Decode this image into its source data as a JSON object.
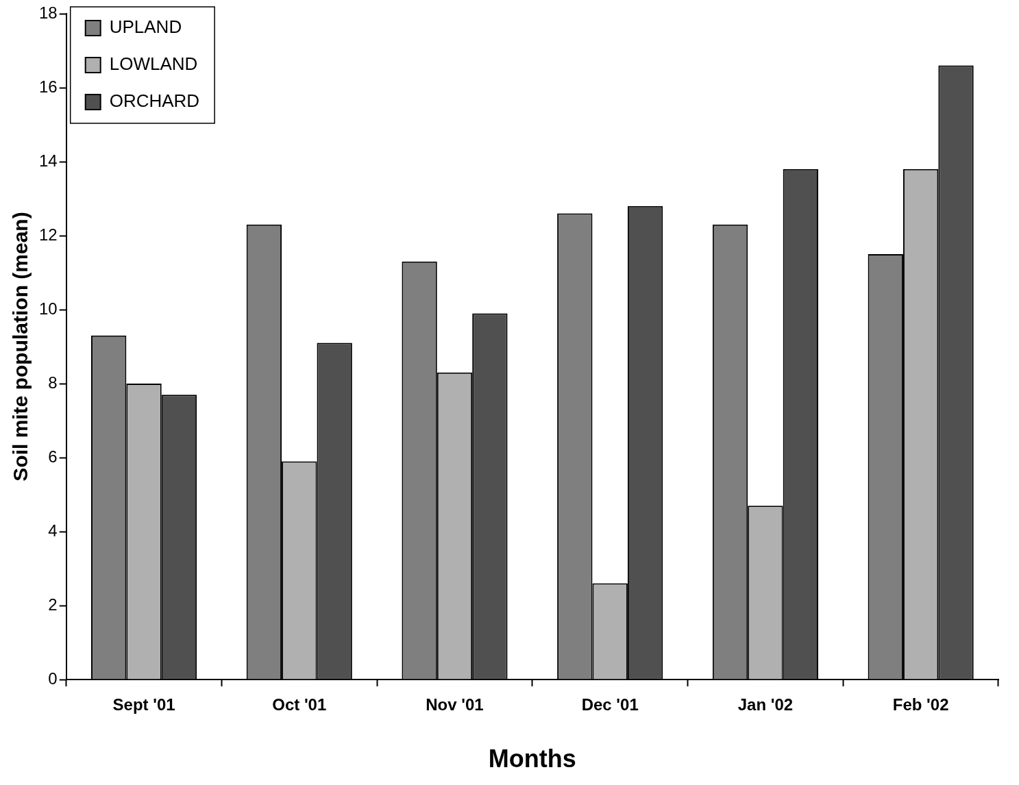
{
  "chart_data": {
    "type": "bar",
    "xlabel": "Months",
    "ylabel": "Soil mite population (mean)",
    "categories": [
      "Sept '01",
      "Oct '01",
      "Nov '01",
      "Dec '01",
      "Jan '02",
      "Feb '02"
    ],
    "series": [
      {
        "name": "UPLAND",
        "color": "#7f7f7f",
        "values": [
          9.3,
          12.3,
          11.3,
          12.6,
          12.3,
          11.5
        ]
      },
      {
        "name": "LOWLAND",
        "color": "#b0b0b0",
        "values": [
          8.0,
          5.9,
          8.3,
          2.6,
          4.7,
          13.8
        ]
      },
      {
        "name": "ORCHARD",
        "color": "#505050",
        "values": [
          7.7,
          9.1,
          9.9,
          12.8,
          13.8,
          16.6
        ]
      }
    ],
    "ylim": [
      0,
      18
    ],
    "yticks": [
      0,
      2,
      4,
      6,
      8,
      10,
      12,
      14,
      16,
      18
    ],
    "grid": false,
    "legend": "top left"
  }
}
